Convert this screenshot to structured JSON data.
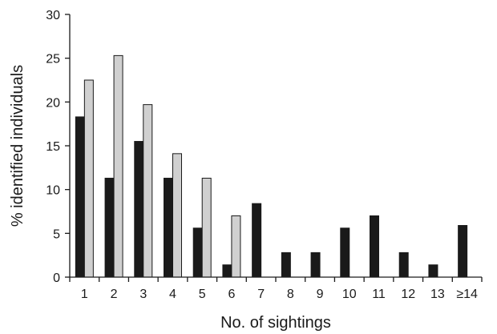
{
  "chart_data": {
    "type": "bar",
    "title": "",
    "xlabel": "No. of sightings",
    "ylabel": "% identified individuals",
    "categories": [
      "1",
      "2",
      "3",
      "4",
      "5",
      "6",
      "7",
      "8",
      "9",
      "10",
      "11",
      "12",
      "13",
      "≥14"
    ],
    "ylim": [
      0,
      30
    ],
    "yticks": [
      "0",
      "5",
      "10",
      "15",
      "20",
      "25",
      "30"
    ],
    "grid": false,
    "legend": "none",
    "series": [
      {
        "color": "#1a1a1a",
        "values": [
          18.3,
          11.3,
          15.5,
          11.3,
          5.6,
          1.4,
          8.4,
          2.8,
          2.8,
          5.6,
          7.0,
          2.8,
          1.4,
          5.9
        ]
      },
      {
        "color": "#d0d0d0",
        "values": [
          22.5,
          25.3,
          19.7,
          14.1,
          11.3,
          7.0,
          null,
          null,
          null,
          null,
          null,
          null,
          null,
          null
        ]
      }
    ]
  }
}
